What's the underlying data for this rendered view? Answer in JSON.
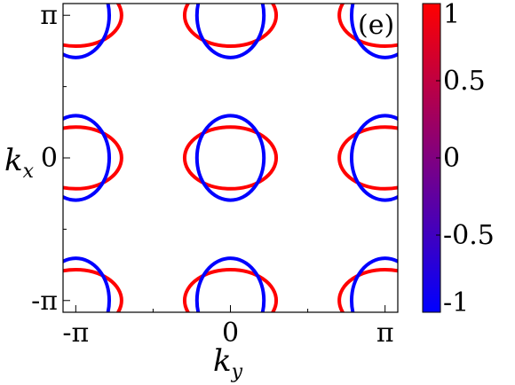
{
  "chart_data": {
    "type": "scatter",
    "panel_label": "(e)",
    "xlabel": "k",
    "xlabel_sub": "y",
    "ylabel": "k",
    "ylabel_sub": "x",
    "xlim": [
      -3.4,
      3.4
    ],
    "ylim": [
      -3.4,
      3.4
    ],
    "x_ticks": [
      {
        "value": -3.14159,
        "label": "-π"
      },
      {
        "value": 0,
        "label": "0"
      },
      {
        "value": 3.14159,
        "label": "π"
      }
    ],
    "y_ticks": [
      {
        "value": -3.14159,
        "label": "-π"
      },
      {
        "value": 0,
        "label": "0"
      },
      {
        "value": 3.14159,
        "label": "π"
      }
    ],
    "colorbar": {
      "range": [
        -1,
        1
      ],
      "colors": [
        "#0000ff",
        "#ff0000"
      ],
      "ticks": [
        {
          "value": 1,
          "label": "1"
        },
        {
          "value": 0.5,
          "label": "0.5"
        },
        {
          "value": 0,
          "label": "0"
        },
        {
          "value": -0.5,
          "label": "-0.5"
        },
        {
          "value": -1,
          "label": "-1"
        }
      ]
    },
    "series": [
      {
        "color_value": 1,
        "color": "#ff0000",
        "centers": [
          [
            0,
            0
          ]
        ],
        "rx": 0.93,
        "ry": 0.68
      },
      {
        "color_value": -1,
        "color": "#0000ff",
        "centers": [
          [
            0,
            0
          ]
        ],
        "rx": 0.68,
        "ry": 0.93
      },
      {
        "color_value": 1,
        "color": "#ff0000",
        "centers": [
          [
            -3.14159,
            -3.14159
          ],
          [
            -3.14159,
            0
          ],
          [
            -3.14159,
            3.14159
          ],
          [
            0,
            -3.14159
          ],
          [
            0,
            3.14159
          ],
          [
            3.14159,
            -3.14159
          ],
          [
            3.14159,
            0
          ],
          [
            3.14159,
            3.14159
          ]
        ],
        "rx": 0.93,
        "ry": 0.68
      },
      {
        "color_value": -1,
        "color": "#0000ff",
        "centers": [
          [
            -3.14159,
            -3.14159
          ],
          [
            -3.14159,
            0
          ],
          [
            -3.14159,
            3.14159
          ],
          [
            0,
            -3.14159
          ],
          [
            0,
            3.14159
          ],
          [
            3.14159,
            -3.14159
          ],
          [
            3.14159,
            0
          ],
          [
            3.14159,
            3.14159
          ]
        ],
        "rx": 0.68,
        "ry": 0.93
      }
    ]
  }
}
